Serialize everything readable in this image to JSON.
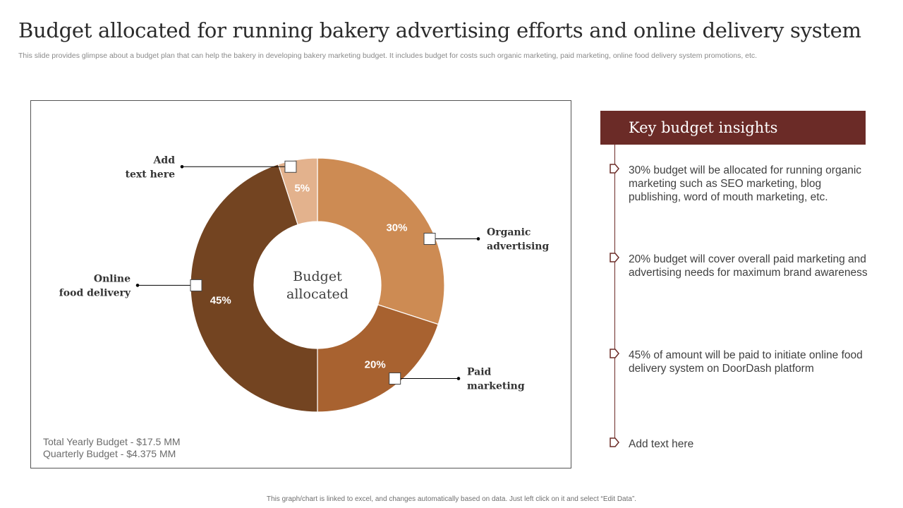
{
  "slide": {
    "title": "Budget allocated for running bakery advertising efforts and online delivery system",
    "subtitle": "This slide provides glimpse about a budget plan that can help the bakery in developing bakery marketing budget. It includes budget for costs such organic marketing, paid marketing, online food delivery system promotions, etc.",
    "footer": "This graph/chart is linked to excel, and changes automatically based on data. Just left click on it and select “Edit Data”."
  },
  "chart_data": {
    "type": "pie",
    "subtype": "donut",
    "center_label": [
      "Budget",
      "allocated"
    ],
    "categories": [
      "Organic advertising",
      "Paid marketing",
      "Online food delivery",
      "Add text here"
    ],
    "values": [
      30,
      20,
      45,
      5
    ],
    "value_labels": [
      "30%",
      "20%",
      "45%",
      "5%"
    ],
    "callout_labels": [
      [
        "Organic",
        "advertising"
      ],
      [
        "Paid",
        "marketing"
      ],
      [
        "Online",
        "food delivery"
      ],
      [
        "Add",
        "text here"
      ]
    ],
    "colors": [
      "#cd8b53",
      "#a86230",
      "#734421",
      "#e3b28d"
    ]
  },
  "budget_notes": [
    "Total Yearly Budget - $17.5 MM",
    "Quarterly Budget - $4.375 MM"
  ],
  "insights": {
    "header": "Key budget insights",
    "items": [
      "30% budget will be allocated for running organic marketing such as SEO marketing, blog publishing, word of mouth marketing, etc.",
      "20% budget will cover overall paid marketing and advertising needs for maximum brand awareness",
      "45% of amount will be paid to initiate online food delivery system on DoorDash platform",
      "Add text here"
    ],
    "accent_color": "#6b2b27"
  }
}
